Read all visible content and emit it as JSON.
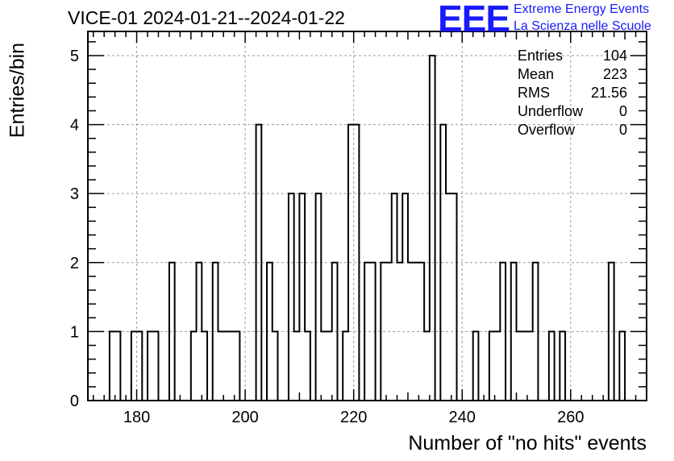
{
  "title": "VICE-01 2024-01-21--2024-01-22",
  "logo": {
    "mark": "EEE",
    "line1": "Extreme Energy Events",
    "line2": "La Scienza nelle Scuole",
    "color": "#1a1aff"
  },
  "stats": [
    {
      "label": "Entries",
      "value": "104"
    },
    {
      "label": "Mean",
      "value": "223"
    },
    {
      "label": "RMS",
      "value": "21.56"
    },
    {
      "label": "Underflow",
      "value": "0"
    },
    {
      "label": "Overflow",
      "value": "0"
    }
  ],
  "chart_data": {
    "type": "bar",
    "subtype": "histogram-step",
    "title": "VICE-01 2024-01-21--2024-01-22",
    "xlabel": "Number of \"no hits\" events",
    "ylabel": "Entries/bin",
    "xlim": [
      171,
      274
    ],
    "ylim": [
      0,
      5.35
    ],
    "bin_width": 1,
    "x_ticks": [
      180,
      200,
      220,
      240,
      260
    ],
    "y_ticks": [
      0,
      1,
      2,
      3,
      4,
      5
    ],
    "grid": true,
    "bins": [
      {
        "x": 175,
        "count": 1
      },
      {
        "x": 176,
        "count": 1
      },
      {
        "x": 179,
        "count": 1
      },
      {
        "x": 180,
        "count": 1
      },
      {
        "x": 182,
        "count": 1
      },
      {
        "x": 183,
        "count": 1
      },
      {
        "x": 186,
        "count": 2
      },
      {
        "x": 190,
        "count": 1
      },
      {
        "x": 191,
        "count": 2
      },
      {
        "x": 192,
        "count": 1
      },
      {
        "x": 194,
        "count": 2
      },
      {
        "x": 195,
        "count": 1
      },
      {
        "x": 196,
        "count": 1
      },
      {
        "x": 197,
        "count": 1
      },
      {
        "x": 198,
        "count": 1
      },
      {
        "x": 202,
        "count": 4
      },
      {
        "x": 204,
        "count": 2
      },
      {
        "x": 205,
        "count": 1
      },
      {
        "x": 208,
        "count": 3
      },
      {
        "x": 209,
        "count": 1
      },
      {
        "x": 210,
        "count": 3
      },
      {
        "x": 211,
        "count": 1
      },
      {
        "x": 213,
        "count": 3
      },
      {
        "x": 214,
        "count": 1
      },
      {
        "x": 215,
        "count": 1
      },
      {
        "x": 216,
        "count": 2
      },
      {
        "x": 218,
        "count": 1
      },
      {
        "x": 219,
        "count": 4
      },
      {
        "x": 220,
        "count": 4
      },
      {
        "x": 222,
        "count": 2
      },
      {
        "x": 223,
        "count": 2
      },
      {
        "x": 225,
        "count": 2
      },
      {
        "x": 226,
        "count": 2
      },
      {
        "x": 227,
        "count": 3
      },
      {
        "x": 228,
        "count": 2
      },
      {
        "x": 229,
        "count": 3
      },
      {
        "x": 230,
        "count": 2
      },
      {
        "x": 231,
        "count": 2
      },
      {
        "x": 232,
        "count": 2
      },
      {
        "x": 233,
        "count": 1
      },
      {
        "x": 234,
        "count": 5
      },
      {
        "x": 236,
        "count": 4
      },
      {
        "x": 237,
        "count": 3
      },
      {
        "x": 238,
        "count": 3
      },
      {
        "x": 242,
        "count": 1
      },
      {
        "x": 245,
        "count": 1
      },
      {
        "x": 246,
        "count": 1
      },
      {
        "x": 247,
        "count": 2
      },
      {
        "x": 249,
        "count": 2
      },
      {
        "x": 250,
        "count": 1
      },
      {
        "x": 251,
        "count": 1
      },
      {
        "x": 252,
        "count": 1
      },
      {
        "x": 253,
        "count": 2
      },
      {
        "x": 256,
        "count": 1
      },
      {
        "x": 258,
        "count": 1
      },
      {
        "x": 267,
        "count": 2
      },
      {
        "x": 269,
        "count": 1
      }
    ]
  }
}
